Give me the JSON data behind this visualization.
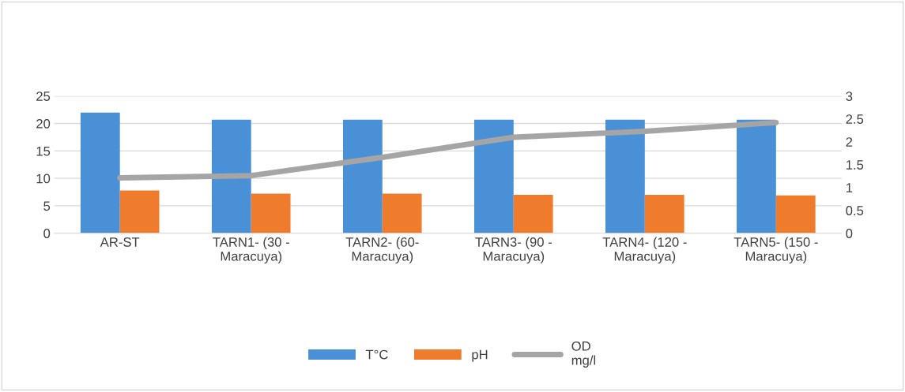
{
  "chart_data": {
    "type": "bar",
    "categories": [
      "AR-ST",
      "TARN1- (30 -\nMaracuya)",
      "TARN2- (60-\nMaracuya)",
      "TARN3- (90 -\nMaracuya)",
      "TARN4- (120 -\nMaracuya)",
      "TARN5- (150 -\nMaracuya)"
    ],
    "series": [
      {
        "name": "T°C",
        "color": "#4a90d6",
        "values": [
          22.0,
          20.7,
          20.7,
          20.7,
          20.7,
          20.7
        ]
      },
      {
        "name": "pH",
        "color": "#ef7b2c",
        "values": [
          7.8,
          7.2,
          7.2,
          7.0,
          7.0,
          6.9
        ]
      },
      {
        "name": "OD\nmg/l",
        "type": "line",
        "axis": "y2",
        "color": "#a5a5a5",
        "values": [
          1.21,
          1.26,
          1.66,
          2.1,
          2.23,
          2.42
        ]
      }
    ],
    "ylim": [
      0,
      25
    ],
    "yticks": [
      0,
      5,
      10,
      15,
      20,
      25
    ],
    "y2lim": [
      0,
      3
    ],
    "y2ticks": [
      0,
      {
        "value": 0.5,
        "label": "0.5"
      },
      1,
      {
        "value": 1.5,
        "label": "1.5"
      },
      2,
      {
        "value": 2.5,
        "label": "2.5"
      },
      3
    ],
    "grid": "y",
    "legend": "bottom",
    "marker": "none",
    "line_style": "solid"
  }
}
